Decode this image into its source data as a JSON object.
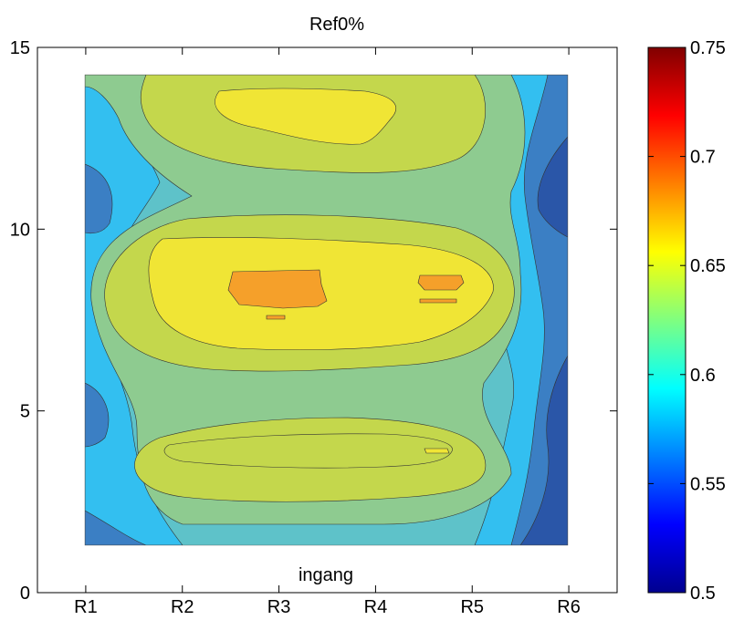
{
  "chart_data": {
    "type": "heatmap",
    "subtype": "filled-contour",
    "title": "Ref0%",
    "annotation": "ingang",
    "xlabel": "",
    "ylabel": "",
    "x_ticks": [
      "R1",
      "R2",
      "R3",
      "R4",
      "R5",
      "R6"
    ],
    "x_values": [
      1,
      2,
      3,
      4,
      5,
      6
    ],
    "xlim": [
      0.5,
      6.5
    ],
    "y_ticks": [
      0,
      5,
      10,
      15
    ],
    "ylim": [
      0,
      15
    ],
    "data_extent": {
      "x": [
        1,
        6
      ],
      "y": [
        1.3,
        14.2
      ]
    },
    "grid": false,
    "colorbar": {
      "colormap": "jet",
      "range": [
        0.5,
        0.75
      ],
      "ticks": [
        0.5,
        0.55,
        0.6,
        0.65,
        0.7,
        0.75
      ],
      "tick_labels": [
        "0.5",
        "0.55",
        "0.6",
        "0.65",
        "0.7",
        "0.75"
      ],
      "position": "right"
    },
    "contour_levels": [
      {
        "level": 0.53,
        "color": "#2a56a8"
      },
      {
        "level": 0.555,
        "color": "#3b7fc4"
      },
      {
        "level": 0.58,
        "color": "#33bff0"
      },
      {
        "level": 0.605,
        "color": "#5ec2c9"
      },
      {
        "level": 0.625,
        "color": "#8ecb90"
      },
      {
        "level": 0.64,
        "color": "#c4d74c"
      },
      {
        "level": 0.655,
        "color": "#f0e535"
      },
      {
        "level": 0.675,
        "color": "#f5a02a"
      }
    ],
    "approximate_regions": [
      {
        "name": "upper-yellow-band",
        "value": 0.655,
        "x": [
          2.2,
          4.2
        ],
        "y": [
          12.5,
          13.8
        ]
      },
      {
        "name": "middle-yellow-band",
        "value": 0.655,
        "x": [
          1.8,
          5.2
        ],
        "y": [
          6.7,
          9.3
        ]
      },
      {
        "name": "center-orange-spot",
        "value": 0.67,
        "x": [
          2.5,
          3.4
        ],
        "y": [
          7.8,
          8.7
        ]
      },
      {
        "name": "right-orange-spot",
        "value": 0.67,
        "x": [
          4.5,
          5.0
        ],
        "y": [
          8.1,
          8.6
        ]
      },
      {
        "name": "lower-green-band",
        "value": 0.64,
        "x": [
          1.8,
          5.2
        ],
        "y": [
          2.6,
          4.3
        ]
      },
      {
        "name": "left-blue-edge",
        "value": 0.55,
        "x": [
          1.0,
          1.3
        ],
        "y": [
          1.3,
          14.2
        ]
      },
      {
        "name": "right-dark-blue-edge",
        "value": 0.53,
        "x": [
          5.6,
          6.0
        ],
        "y": [
          1.3,
          14.2
        ]
      }
    ]
  }
}
